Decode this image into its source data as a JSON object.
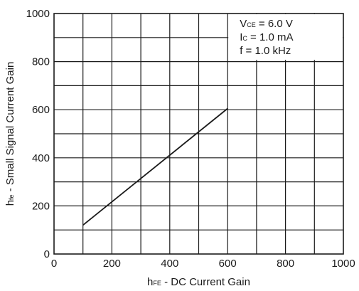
{
  "chart_data": {
    "type": "line",
    "x": [
      100,
      600
    ],
    "series": [
      {
        "values": [
          120,
          605
        ]
      }
    ],
    "xlim": [
      0,
      1000
    ],
    "ylim": [
      0,
      1000
    ],
    "x_ticks": [
      0,
      200,
      400,
      600,
      800,
      1000
    ],
    "y_ticks": [
      0,
      200,
      400,
      600,
      800,
      1000
    ],
    "x_tick_labels": [
      "0",
      "200",
      "400",
      "600",
      "800",
      "1000"
    ],
    "y_tick_labels": [
      "0",
      "200",
      "400",
      "600",
      "800",
      "1000"
    ],
    "grid": true,
    "grid_x_step": 100,
    "grid_y_step": 100,
    "xlabel": {
      "main": "h",
      "sub": "FE",
      "rest": " - DC Current Gain"
    },
    "ylabel": {
      "main": "h",
      "sub": "fe",
      "rest": " - Small Signal Current Gain"
    },
    "annotations": [
      {
        "main": "V",
        "sub": "CE",
        "rest": " = 6.0 V"
      },
      {
        "main": "I",
        "sub": "C",
        "rest": " = 1.0 mA"
      },
      {
        "main": "f",
        "sub": "",
        "rest": " = 1.0 kHz"
      }
    ],
    "line_color": "#1a1a1a",
    "grid_color": "#1a1a1a"
  }
}
